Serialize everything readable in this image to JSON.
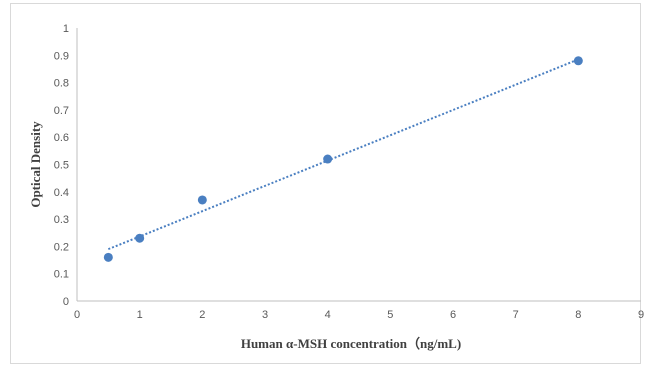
{
  "chart_data": {
    "type": "scatter",
    "title": "",
    "xlabel": "Human α-MSH concentration（ng/mL)",
    "ylabel": "Optical Density",
    "xlim": [
      0,
      9
    ],
    "ylim": [
      0,
      1
    ],
    "x_ticks": [
      "0",
      "1",
      "2",
      "3",
      "4",
      "5",
      "6",
      "7",
      "8",
      "9"
    ],
    "y_ticks": [
      "0",
      "0.1",
      "0.2",
      "0.3",
      "0.4",
      "0.5",
      "0.6",
      "0.7",
      "0.8",
      "0.9",
      "1"
    ],
    "grid": false,
    "legend": "none",
    "series": [
      {
        "x": [
          0.5,
          1,
          2,
          4,
          8
        ],
        "y": [
          0.16,
          0.23,
          0.37,
          0.52,
          0.88
        ],
        "color": "#4a7fc1",
        "trendline": {
          "type": "linear",
          "style": "dotted",
          "x_range": [
            0.5,
            8
          ],
          "y_range": [
            0.19,
            0.885
          ]
        }
      }
    ]
  }
}
